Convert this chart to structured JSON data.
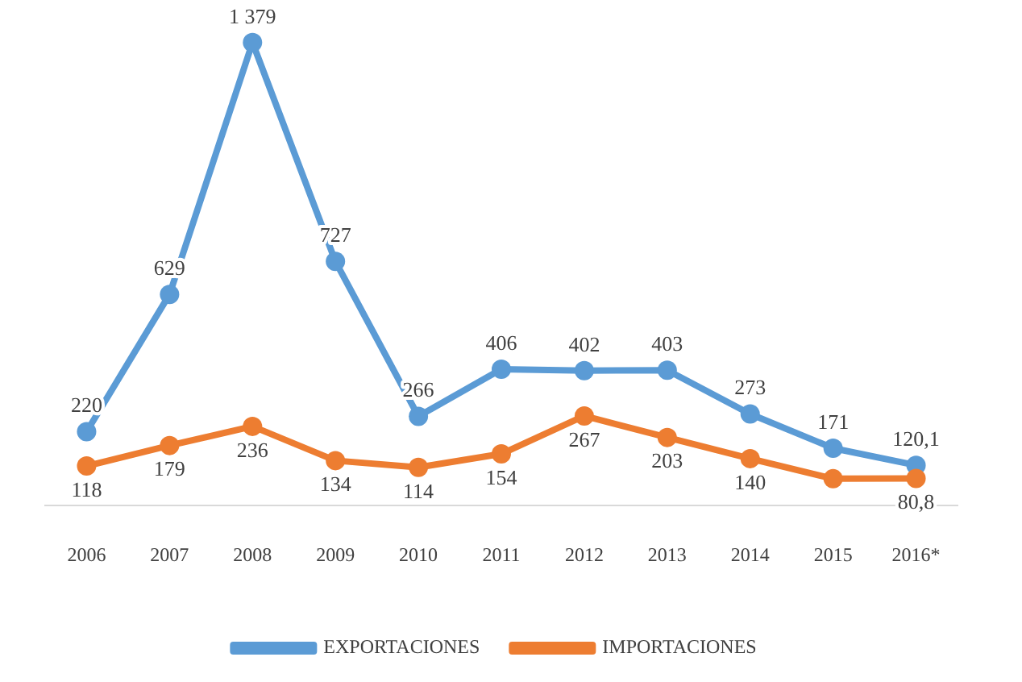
{
  "chart_data": {
    "type": "line",
    "categories": [
      "2006",
      "2007",
      "2008",
      "2009",
      "2010",
      "2011",
      "2012",
      "2013",
      "2014",
      "2015",
      "2016*"
    ],
    "series": [
      {
        "name": "EXPORTACIONES",
        "color": "#5b9bd5",
        "values": [
          220,
          629,
          1379,
          727,
          266,
          406,
          402,
          403,
          273,
          171,
          120.1
        ],
        "value_labels": [
          "220",
          "629",
          "1 379",
          "727",
          "266",
          "406",
          "402",
          "403",
          "273",
          "171",
          "120,1"
        ]
      },
      {
        "name": "IMPORTACIONES",
        "color": "#ed7d31",
        "values": [
          118,
          179,
          236,
          134,
          114,
          154,
          267,
          203,
          140,
          80,
          80.8
        ],
        "value_labels": [
          "118",
          "179",
          "236",
          "134",
          "114",
          "154",
          "267",
          "203",
          "140",
          null,
          "80,8"
        ]
      }
    ],
    "tick_labels": "x",
    "grid": false,
    "legend": "bottom",
    "marker": "circle",
    "line_style": "solid"
  }
}
